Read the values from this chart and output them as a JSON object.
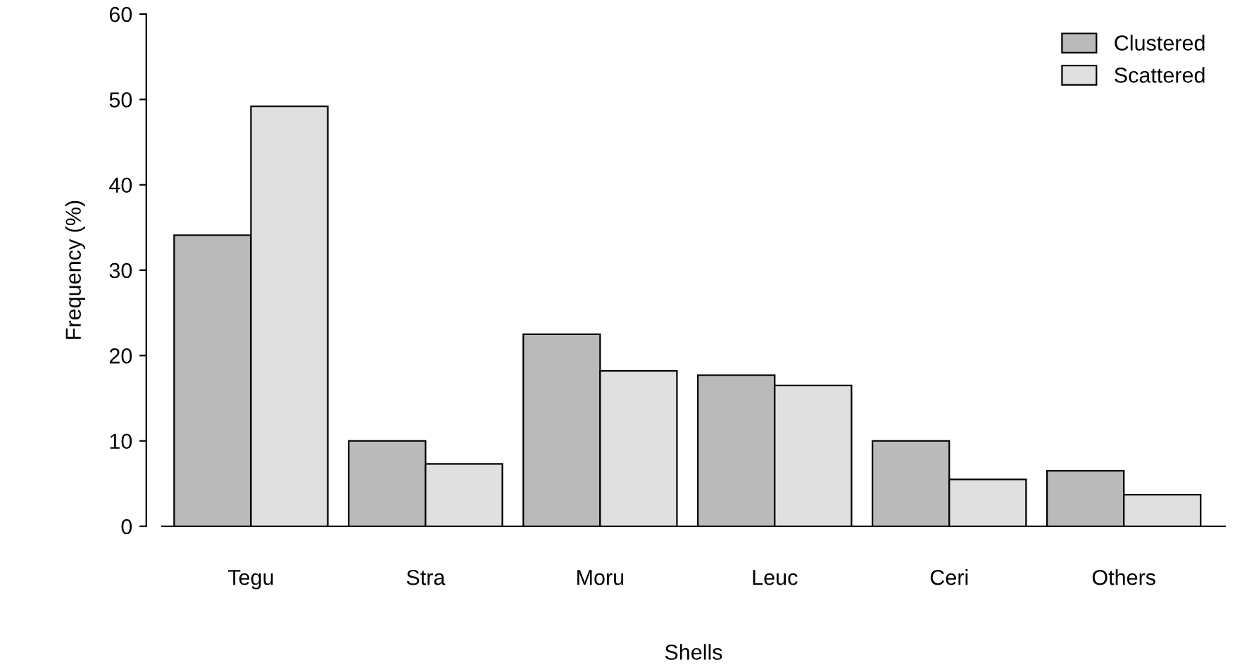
{
  "chart_data": {
    "type": "bar",
    "xlabel": "Shells",
    "ylabel": "Frequency (%)",
    "categories": [
      "Tegu",
      "Stra",
      "Moru",
      "Leuc",
      "Ceri",
      "Others"
    ],
    "series": [
      {
        "name": "Clustered",
        "color": "#bababa",
        "values": [
          34.1,
          10,
          22.5,
          17.7,
          10,
          6.5
        ]
      },
      {
        "name": "Scattered",
        "color": "#e0e0e0",
        "values": [
          49.2,
          7.3,
          18.2,
          16.5,
          5.5,
          3.7
        ]
      }
    ],
    "ylim": [
      0,
      60
    ],
    "yticks": [
      0,
      10,
      20,
      30,
      40,
      50,
      60
    ],
    "grid": false,
    "legend": "top right"
  }
}
